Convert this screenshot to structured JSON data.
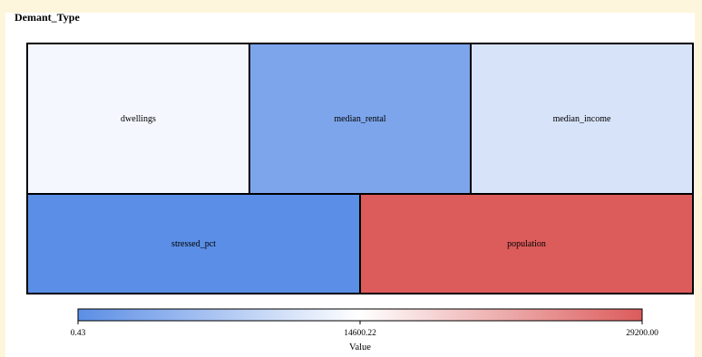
{
  "chart_data": {
    "type": "heatmap",
    "title": "Demant_Type",
    "tiles": [
      {
        "label": "dwellings",
        "value": 13600
      },
      {
        "label": "median_rental",
        "value": 3000
      },
      {
        "label": "median_income",
        "value": 11000
      },
      {
        "label": "stressed_pct",
        "value": 0.43
      },
      {
        "label": "population",
        "value": 29200
      }
    ],
    "colorbar": {
      "min": 0.43,
      "max": 29200.0,
      "tick_labels": [
        "0.43",
        "14600.22",
        "29200.00"
      ],
      "label": "Value",
      "colors": [
        "#5b8ee6",
        "#ffffff",
        "#dc5b5b"
      ]
    }
  }
}
